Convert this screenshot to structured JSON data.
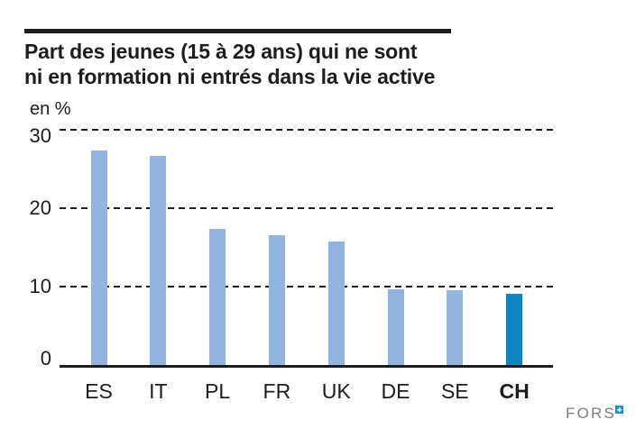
{
  "header": {
    "title_line1": "Part des jeunes (15 à 29 ans) qui ne sont",
    "title_line2": "ni en formation ni entrés dans la vie active"
  },
  "chart_data": {
    "type": "bar",
    "title": "Part des jeunes (15 à 29 ans) qui ne sont ni en formation ni entrés dans la vie active",
    "unit_label": "en %",
    "categories": [
      "ES",
      "IT",
      "PL",
      "FR",
      "UK",
      "DE",
      "SE",
      "CH"
    ],
    "values": [
      27.4,
      26.7,
      17.4,
      16.6,
      15.7,
      9.7,
      9.5,
      9.1
    ],
    "highlight_category": "CH",
    "ylim": [
      0,
      30
    ],
    "yticks": [
      0,
      10,
      20,
      30
    ],
    "grid": "horizontal-dashed",
    "legend": "none",
    "xlabel": "",
    "ylabel": "en %",
    "bar_color": "#92B4DE",
    "highlight_color": "#0E84C5",
    "axis_color": "#1D1D1B"
  },
  "footer": {
    "logo_text": "FORS",
    "logo_square_color": "#1E8FCC"
  }
}
